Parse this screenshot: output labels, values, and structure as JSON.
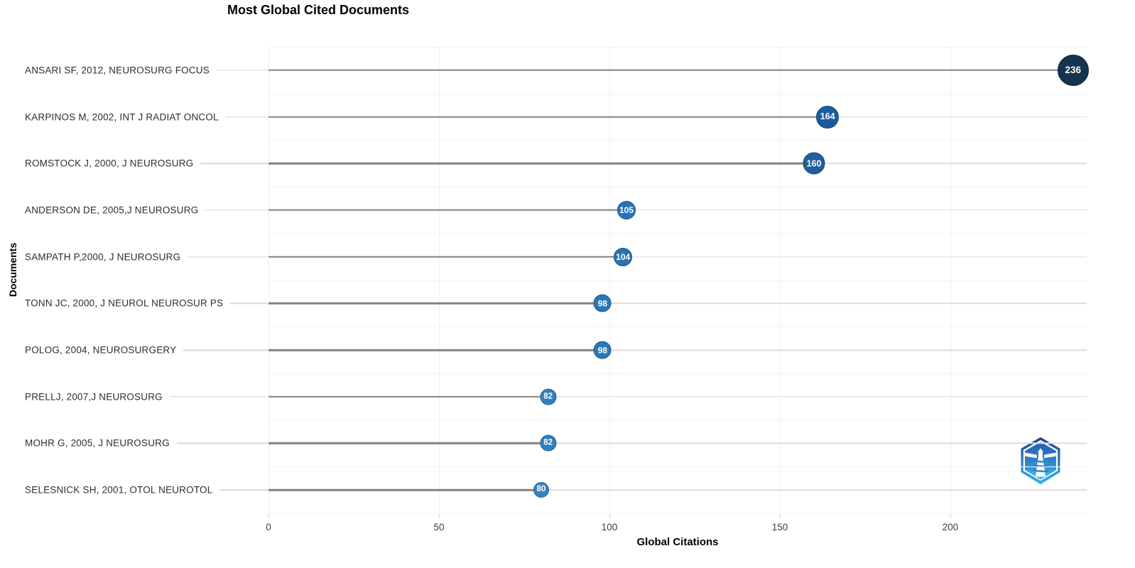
{
  "chart_data": {
    "type": "scatter",
    "variant": "lollipop",
    "title": "Most Global Cited Documents",
    "xlabel": "Global Citations",
    "ylabel": "Documents",
    "xlim": [
      0,
      240
    ],
    "x_ticks": [
      0,
      50,
      100,
      150,
      200
    ],
    "grid": true,
    "legend": "none",
    "categories": [
      "ANSARI SF, 2012, NEUROSURG FOCUS",
      "KARPINOS M, 2002, INT J RADIAT ONCOL",
      "ROMSTOCK J, 2000, J NEUROSURG",
      "ANDERSON DE, 2005,J NEUROSURG",
      "SAMPATH P,2000, J NEUROSURG",
      "TONN JC, 2000, J NEUROL NEUROSUR PS",
      "POLOG, 2004, NEUROSURGERY",
      "PRELLJ, 2007,J NEUROSURG",
      "MOHR G, 2005, J NEUROSURG",
      "SELESNICK SH, 2001, OTOL NEUROTOL"
    ],
    "values": [
      236,
      164,
      160,
      105,
      104,
      98,
      98,
      82,
      82,
      80
    ]
  },
  "style": {
    "dot_colors": [
      "#16334f",
      "#1d5c9c",
      "#1f5f9f",
      "#2973b4",
      "#2973b4",
      "#2b76b7",
      "#2b76b7",
      "#3080c0",
      "#3080c0",
      "#3484c4"
    ],
    "dot_borders": [
      "#0d2136",
      "#154672",
      "#174974",
      "#1e5787",
      "#1e5787",
      "#205a8a",
      "#205a8a",
      "#246191",
      "#246191",
      "#276495"
    ],
    "dot_sizes": [
      42,
      30,
      29,
      24,
      24,
      23,
      23,
      21,
      21,
      20
    ],
    "stem_color": "#86807a",
    "row_line_color": "#e2dcda",
    "connector_color": "#ddd5d3",
    "vgrid_color": "#efefef",
    "minor_grid_color": "#f3f3f3"
  },
  "watermark": {
    "icon": "bibliometrix-lighthouse-logo",
    "hex_dark": "#1e3f8f",
    "hex_light": "#3fc0ee"
  }
}
